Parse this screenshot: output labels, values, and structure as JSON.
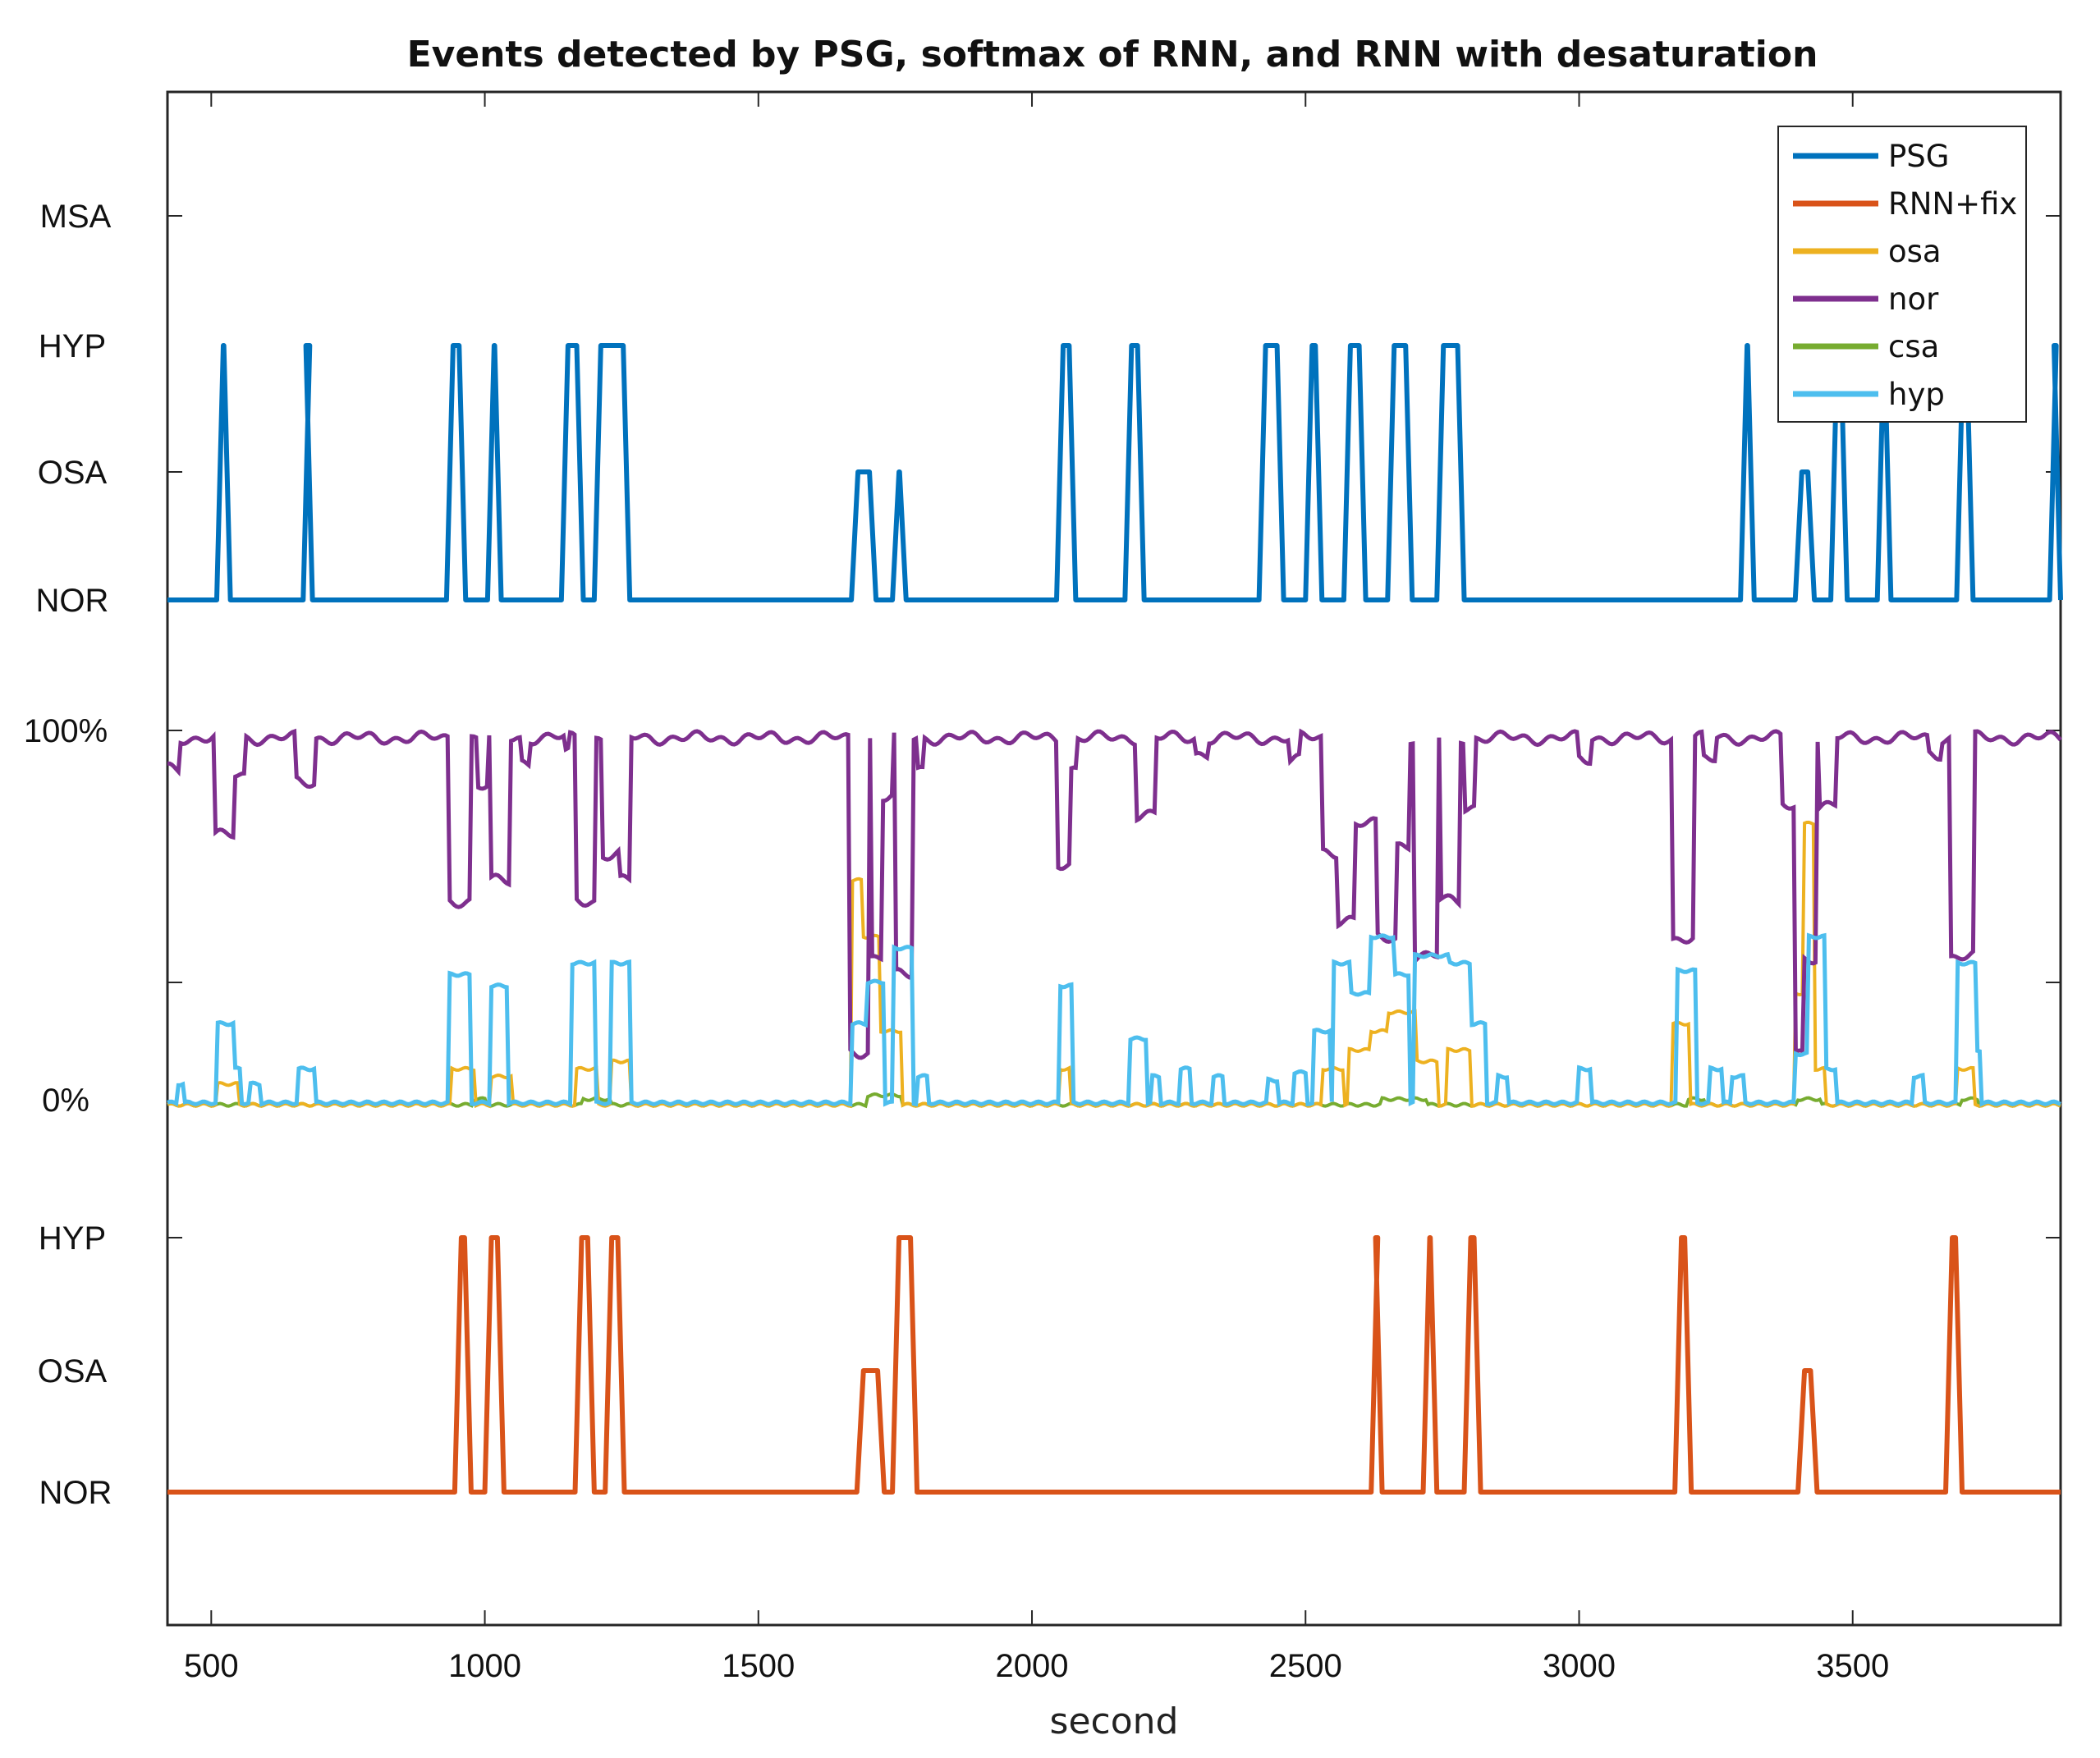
{
  "chart_data": {
    "type": "line",
    "title": "Events detected by PSG, softmax of RNN, and RNN with desaturation",
    "xlabel": "second",
    "xlim": [
      420,
      3880
    ],
    "x_ticks": [
      500,
      1000,
      1500,
      2000,
      2500,
      3000,
      3500
    ],
    "x_tick_labels": [
      "500",
      "1000",
      "1500",
      "2000",
      "2500",
      "3000",
      "3500"
    ],
    "y_labels": [
      "MSA",
      "HYP",
      "OSA",
      "NOR",
      "100%",
      "0%",
      "HYP",
      "OSA",
      "NOR"
    ],
    "legend": {
      "position": "top-right",
      "entries": [
        "PSG",
        "RNN+fix",
        "osa",
        "nor",
        "csa",
        "hyp"
      ]
    },
    "colors": {
      "PSG": "#0072bd",
      "RNN+fix": "#d95319",
      "osa": "#edb120",
      "nor": "#7e2f8e",
      "csa": "#77ac30",
      "hyp": "#4dbeee",
      "axes": "#262626"
    },
    "panels": {
      "top": {
        "series": "PSG",
        "levels": [
          "NOR",
          "OSA",
          "HYP",
          "MSA"
        ],
        "events": [
          {
            "start": 510,
            "end": 535,
            "level": "HYP"
          },
          {
            "start": 668,
            "end": 685,
            "level": "HYP"
          },
          {
            "start": 930,
            "end": 965,
            "level": "HYP"
          },
          {
            "start": 1005,
            "end": 1030,
            "level": "HYP"
          },
          {
            "start": 1140,
            "end": 1180,
            "level": "HYP"
          },
          {
            "start": 1200,
            "end": 1265,
            "level": "HYP"
          },
          {
            "start": 1670,
            "end": 1715,
            "level": "OSA"
          },
          {
            "start": 1745,
            "end": 1770,
            "level": "OSA"
          },
          {
            "start": 2045,
            "end": 2080,
            "level": "HYP"
          },
          {
            "start": 2170,
            "end": 2205,
            "level": "HYP"
          },
          {
            "start": 2415,
            "end": 2460,
            "level": "HYP"
          },
          {
            "start": 2500,
            "end": 2530,
            "level": "HYP"
          },
          {
            "start": 2570,
            "end": 2610,
            "level": "HYP"
          },
          {
            "start": 2650,
            "end": 2695,
            "level": "HYP"
          },
          {
            "start": 2740,
            "end": 2790,
            "level": "HYP"
          },
          {
            "start": 3295,
            "end": 3320,
            "level": "HYP"
          },
          {
            "start": 3395,
            "end": 3430,
            "level": "OSA"
          },
          {
            "start": 3460,
            "end": 3490,
            "level": "HYP"
          },
          {
            "start": 3545,
            "end": 3570,
            "level": "HYP"
          },
          {
            "start": 3690,
            "end": 3720,
            "level": "HYP"
          },
          {
            "start": 3860,
            "end": 3880,
            "level": "HYP"
          }
        ]
      },
      "middle": {
        "unit": "probability (%)",
        "ylim": [
          0,
          100
        ],
        "nor": {
          "base": 98,
          "dips": [
            [
              420,
              440,
              90
            ],
            [
              505,
              540,
              72
            ],
            [
              540,
              560,
              88
            ],
            [
              655,
              690,
              86
            ],
            [
              935,
              975,
              55
            ],
            [
              985,
              1005,
              85
            ],
            [
              1010,
              1045,
              60
            ],
            [
              1065,
              1080,
              92
            ],
            [
              1145,
              1155,
              94
            ],
            [
              1165,
              1200,
              55
            ],
            [
              1215,
              1245,
              67
            ],
            [
              1245,
              1265,
              60
            ],
            [
              1665,
              1700,
              15
            ],
            [
              1705,
              1725,
              40
            ],
            [
              1725,
              1745,
              82
            ],
            [
              1750,
              1780,
              35
            ],
            [
              1790,
              1800,
              90
            ],
            [
              2045,
              2070,
              65
            ],
            [
              2070,
              2080,
              90
            ],
            [
              2190,
              2225,
              78
            ],
            [
              2300,
              2320,
              94
            ],
            [
              2470,
              2490,
              92
            ],
            [
              2530,
              2560,
              68
            ],
            [
              2560,
              2590,
              50
            ],
            [
              2590,
              2630,
              75
            ],
            [
              2630,
              2665,
              45
            ],
            [
              2665,
              2690,
              70
            ],
            [
              2700,
              2740,
              40
            ],
            [
              2745,
              2780,
              55
            ],
            [
              2790,
              2810,
              80
            ],
            [
              3000,
              3020,
              92
            ],
            [
              3170,
              3210,
              45
            ],
            [
              3225,
              3250,
              92
            ],
            [
              3370,
              3395,
              80
            ],
            [
              3395,
              3410,
              15
            ],
            [
              3410,
              3435,
              40
            ],
            [
              3440,
              3470,
              80
            ],
            [
              3640,
              3660,
              94
            ],
            [
              3680,
              3720,
              40
            ]
          ]
        },
        "hyp": {
          "base": 1,
          "peaks": [
            [
              440,
              450,
              6
            ],
            [
              510,
              540,
              22
            ],
            [
              540,
              555,
              10
            ],
            [
              570,
              590,
              6
            ],
            [
              660,
              690,
              10
            ],
            [
              935,
              975,
              35
            ],
            [
              1010,
              1040,
              32
            ],
            [
              1160,
              1200,
              38
            ],
            [
              1230,
              1265,
              38
            ],
            [
              1670,
              1700,
              22
            ],
            [
              1700,
              1730,
              33
            ],
            [
              1745,
              1780,
              42
            ],
            [
              1790,
              1810,
              8
            ],
            [
              2050,
              2075,
              32
            ],
            [
              2180,
              2210,
              18
            ],
            [
              2220,
              2235,
              8
            ],
            [
              2270,
              2290,
              10
            ],
            [
              2330,
              2350,
              8
            ],
            [
              2430,
              2450,
              7
            ],
            [
              2480,
              2500,
              9
            ],
            [
              2515,
              2545,
              20
            ],
            [
              2550,
              2580,
              38
            ],
            [
              2580,
              2620,
              30
            ],
            [
              2620,
              2660,
              45
            ],
            [
              2660,
              2690,
              35
            ],
            [
              2700,
              2760,
              40
            ],
            [
              2760,
              2800,
              38
            ],
            [
              2800,
              2830,
              22
            ],
            [
              2850,
              2870,
              8
            ],
            [
              3000,
              3020,
              10
            ],
            [
              3180,
              3215,
              36
            ],
            [
              3240,
              3260,
              10
            ],
            [
              3280,
              3300,
              8
            ],
            [
              3395,
              3420,
              14
            ],
            [
              3420,
              3450,
              45
            ],
            [
              3450,
              3470,
              10
            ],
            [
              3610,
              3630,
              8
            ],
            [
              3690,
              3725,
              38
            ],
            [
              3720,
              3735,
              15
            ]
          ]
        },
        "osa": {
          "base": 0.5,
          "peaks": [
            [
              510,
              550,
              6
            ],
            [
              940,
              980,
              10
            ],
            [
              1010,
              1050,
              8
            ],
            [
              1165,
              1205,
              10
            ],
            [
              1230,
              1265,
              12
            ],
            [
              1670,
              1690,
              60
            ],
            [
              1690,
              1720,
              45
            ],
            [
              1720,
              1760,
              20
            ],
            [
              2050,
              2070,
              10
            ],
            [
              2530,
              2570,
              10
            ],
            [
              2580,
              2620,
              15
            ],
            [
              2620,
              2650,
              20
            ],
            [
              2650,
              2700,
              25
            ],
            [
              2700,
              2740,
              12
            ],
            [
              2760,
              2800,
              15
            ],
            [
              3170,
              3200,
              22
            ],
            [
              3395,
              3410,
              30
            ],
            [
              3410,
              3430,
              75
            ],
            [
              3430,
              3450,
              10
            ],
            [
              3690,
              3720,
              10
            ]
          ]
        },
        "csa": {
          "base": 0.5,
          "peaks": [
            [
              980,
              1000,
              2
            ],
            [
              1180,
              1230,
              2
            ],
            [
              1700,
              1760,
              3
            ],
            [
              2640,
              2720,
              2
            ],
            [
              3200,
              3230,
              2
            ],
            [
              3400,
              3440,
              2
            ],
            [
              3700,
              3730,
              2
            ]
          ]
        }
      },
      "bottom": {
        "series": "RNN+fix",
        "levels": [
          "NOR",
          "OSA",
          "HYP"
        ],
        "events": [
          {
            "start": 945,
            "end": 975,
            "level": "HYP"
          },
          {
            "start": 1000,
            "end": 1035,
            "level": "HYP"
          },
          {
            "start": 1165,
            "end": 1200,
            "level": "HYP"
          },
          {
            "start": 1220,
            "end": 1255,
            "level": "HYP"
          },
          {
            "start": 1680,
            "end": 1730,
            "level": "OSA"
          },
          {
            "start": 1745,
            "end": 1790,
            "level": "HYP"
          },
          {
            "start": 2620,
            "end": 2640,
            "level": "HYP"
          },
          {
            "start": 2715,
            "end": 2740,
            "level": "HYP"
          },
          {
            "start": 2790,
            "end": 2820,
            "level": "HYP"
          },
          {
            "start": 3175,
            "end": 3205,
            "level": "HYP"
          },
          {
            "start": 3400,
            "end": 3435,
            "level": "OSA"
          },
          {
            "start": 3670,
            "end": 3700,
            "level": "HYP"
          }
        ]
      }
    }
  }
}
